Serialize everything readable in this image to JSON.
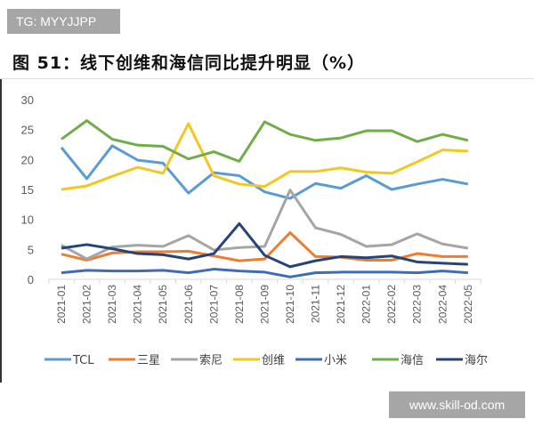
{
  "badge": "TG: MYYJJPP",
  "title": "图 51：线下创维和海信同比提升明显（%）",
  "site": "www.skill-od.com",
  "chart_data": {
    "type": "line",
    "title": "图 51：线下创维和海信同比提升明显（%）",
    "xlabel": "",
    "ylabel": "",
    "ylim": [
      0,
      30
    ],
    "yticks": [
      0,
      5,
      10,
      15,
      20,
      25,
      30
    ],
    "grid": false,
    "legend": "bottom",
    "categories": [
      "2021-01",
      "2021-02",
      "2021-03",
      "2021-04",
      "2021-05",
      "2021-06",
      "2021-07",
      "2021-08",
      "2021-09",
      "2021-10",
      "2021-11",
      "2021-12",
      "2022-01",
      "2022-02",
      "2022-03",
      "2022-04",
      "2022-05"
    ],
    "series": [
      {
        "name": "TCL",
        "color": "#5b9bd5",
        "values": [
          22.0,
          16.8,
          22.3,
          19.9,
          19.4,
          14.4,
          17.8,
          17.3,
          14.6,
          13.5,
          16.0,
          15.2,
          17.3,
          15.0,
          15.9,
          16.7,
          15.9
        ]
      },
      {
        "name": "三星",
        "color": "#ed7d31",
        "values": [
          4.2,
          3.2,
          4.4,
          4.6,
          4.6,
          4.7,
          3.9,
          3.1,
          3.4,
          7.8,
          3.8,
          3.7,
          3.2,
          3.2,
          4.3,
          3.8,
          3.8
        ]
      },
      {
        "name": "索尼",
        "color": "#a5a5a5",
        "values": [
          5.7,
          3.4,
          5.4,
          5.7,
          5.5,
          7.3,
          4.9,
          5.3,
          5.5,
          14.9,
          8.6,
          7.5,
          5.5,
          5.8,
          7.6,
          5.9,
          5.2
        ]
      },
      {
        "name": "创维",
        "color": "#f2c81e",
        "values": [
          15.0,
          15.6,
          17.2,
          18.7,
          17.7,
          26.0,
          17.3,
          15.9,
          15.5,
          18.0,
          18.0,
          18.6,
          17.9,
          17.7,
          19.6,
          21.6,
          21.4
        ]
      },
      {
        "name": "小米",
        "color": "#3f6cb5",
        "values": [
          1.1,
          1.5,
          1.4,
          1.4,
          1.5,
          1.1,
          1.7,
          1.4,
          1.2,
          0.4,
          1.1,
          1.2,
          1.2,
          1.2,
          1.1,
          1.4,
          1.1
        ]
      },
      {
        "name": "海信",
        "color": "#70ad47",
        "values": [
          23.4,
          26.5,
          23.4,
          22.4,
          22.2,
          20.1,
          21.3,
          19.7,
          26.3,
          24.2,
          23.2,
          23.6,
          24.8,
          24.8,
          23.0,
          24.2,
          23.2
        ]
      },
      {
        "name": "海尔",
        "color": "#264478",
        "values": [
          5.2,
          5.8,
          5.1,
          4.3,
          4.1,
          3.4,
          4.3,
          9.3,
          4.0,
          2.1,
          3.1,
          3.8,
          3.6,
          3.9,
          2.9,
          2.7,
          2.5
        ]
      }
    ]
  }
}
